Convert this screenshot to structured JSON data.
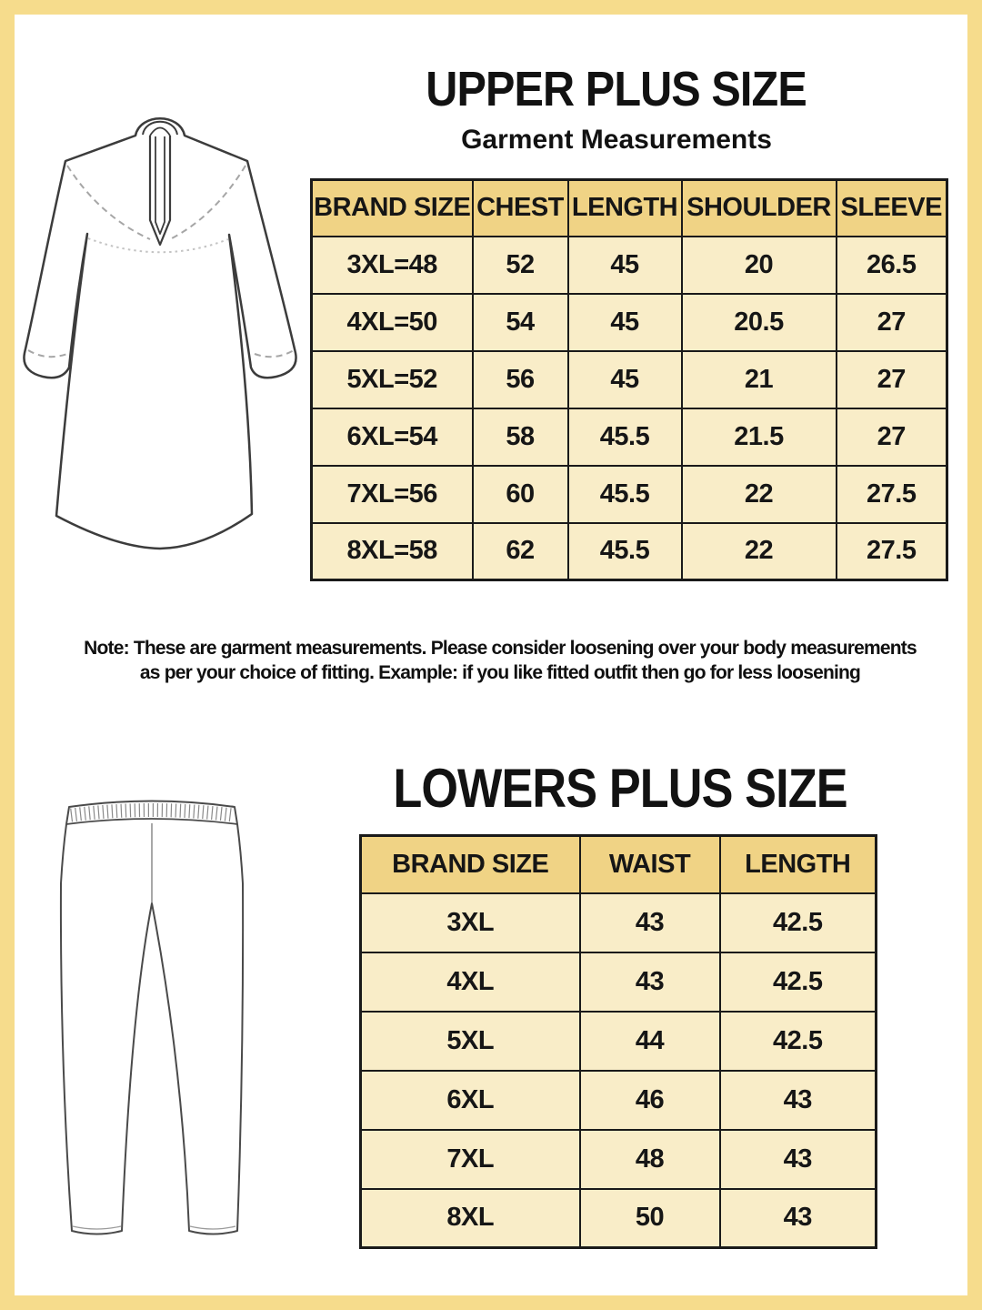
{
  "page": {
    "frame_color": "#f6dc8c",
    "table_header_color": "#f0d385",
    "table_cell_color": "#f9edc8",
    "text_color": "#161616"
  },
  "upper": {
    "title": "UPPER PLUS SIZE",
    "subtitle": "Garment Measurements",
    "table": {
      "columns": [
        "BRAND SIZE",
        "CHEST",
        "LENGTH",
        "SHOULDER",
        "SLEEVE"
      ],
      "rows": [
        [
          "3XL=48",
          "52",
          "45",
          "20",
          "26.5"
        ],
        [
          "4XL=50",
          "54",
          "45",
          "20.5",
          "27"
        ],
        [
          "5XL=52",
          "56",
          "45",
          "21",
          "27"
        ],
        [
          "6XL=54",
          "58",
          "45.5",
          "21.5",
          "27"
        ],
        [
          "7XL=56",
          "60",
          "45.5",
          "22",
          "27.5"
        ],
        [
          "8XL=58",
          "62",
          "45.5",
          "22",
          "27.5"
        ]
      ]
    },
    "note_line1": "Note: These are garment measurements. Please consider loosening over your body measurements",
    "note_line2": "as per your choice of fitting. Example: if you like fitted outfit then go for less loosening"
  },
  "lower": {
    "title": "LOWERS PLUS SIZE",
    "table": {
      "columns": [
        "BRAND SIZE",
        "WAIST",
        "LENGTH"
      ],
      "rows": [
        [
          "3XL",
          "43",
          "42.5"
        ],
        [
          "4XL",
          "43",
          "42.5"
        ],
        [
          "5XL",
          "44",
          "42.5"
        ],
        [
          "6XL",
          "46",
          "43"
        ],
        [
          "7XL",
          "48",
          "43"
        ],
        [
          "8XL",
          "50",
          "43"
        ]
      ]
    }
  },
  "illustrations": {
    "kurta": "kurta-line-drawing",
    "pants": "pants-line-drawing"
  }
}
